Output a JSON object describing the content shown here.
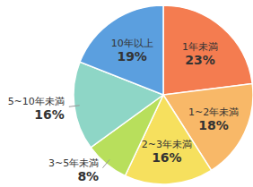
{
  "chart_data": {
    "type": "pie",
    "categories": [
      "1年未満",
      "1~2年未満",
      "2~3年未満",
      "3~5年未満",
      "5~10年未満",
      "10年以上"
    ],
    "values": [
      23,
      18,
      16,
      8,
      16,
      19
    ],
    "value_labels": [
      "23%",
      "18%",
      "16%",
      "8%",
      "16%",
      "19%"
    ],
    "colors": [
      "#f47c50",
      "#f8b868",
      "#f6e05e",
      "#b8df5c",
      "#8ed6c6",
      "#5b9fdf"
    ],
    "data_labels": true
  }
}
